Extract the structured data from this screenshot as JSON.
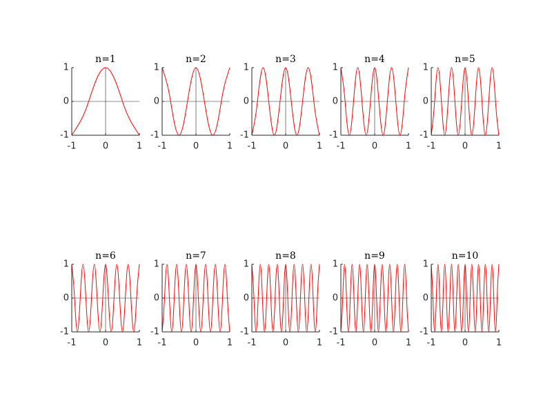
{
  "chart_data": [
    {
      "type": "line",
      "title": "n=1",
      "color": "#ff0000",
      "xlim": [
        -1,
        1
      ],
      "ylim": [
        -1,
        1
      ],
      "xticks": [
        -1,
        0,
        1
      ],
      "yticks": [
        -1,
        0,
        1
      ],
      "x": [
        -1,
        -0.5,
        0,
        0.5,
        1
      ],
      "values": [
        -1,
        0,
        1,
        0,
        -1
      ]
    },
    {
      "type": "line",
      "title": "n=2",
      "color": "#ff0000",
      "xlim": [
        -1,
        1
      ],
      "ylim": [
        -1,
        1
      ],
      "xticks": [
        -1,
        0,
        1
      ],
      "yticks": [
        -1,
        0,
        1
      ],
      "x": [
        -1,
        -0.75,
        -0.5,
        -0.25,
        0,
        0.25,
        0.5,
        0.75,
        1
      ],
      "values": [
        1,
        0,
        -1,
        0,
        1,
        0,
        -1,
        0,
        1
      ]
    },
    {
      "type": "line",
      "title": "n=3",
      "color": "#ff0000",
      "xlim": [
        -1,
        1
      ],
      "ylim": [
        -1,
        1
      ],
      "xticks": [
        -1,
        0,
        1
      ],
      "yticks": [
        -1,
        0,
        1
      ],
      "x": [
        -1,
        -0.8333,
        -0.6667,
        -0.5,
        -0.3333,
        -0.1667,
        0,
        0.1667,
        0.3333,
        0.5,
        0.6667,
        0.8333,
        1
      ],
      "values": [
        -1,
        0,
        1,
        0,
        -1,
        0,
        1,
        0,
        -1,
        0,
        1,
        0,
        -1
      ]
    },
    {
      "type": "line",
      "title": "n=4",
      "color": "#ff0000",
      "xlim": [
        -1,
        1
      ],
      "ylim": [
        -1,
        1
      ],
      "xticks": [
        -1,
        0,
        1
      ],
      "yticks": [
        -1,
        0,
        1
      ],
      "x": [
        -1,
        -0.875,
        -0.75,
        -0.625,
        -0.5,
        -0.375,
        -0.25,
        -0.125,
        0,
        0.125,
        0.25,
        0.375,
        0.5,
        0.625,
        0.75,
        0.875,
        1
      ],
      "values": [
        1,
        0,
        -1,
        0,
        1,
        0,
        -1,
        0,
        1,
        0,
        -1,
        0,
        1,
        0,
        -1,
        0,
        1
      ]
    },
    {
      "type": "line",
      "title": "n=5",
      "color": "#ff0000",
      "xlim": [
        -1,
        1
      ],
      "ylim": [
        -1,
        1
      ],
      "xticks": [
        -1,
        0,
        1
      ],
      "yticks": [
        -1,
        0,
        1
      ],
      "x": [
        -1,
        -0.9,
        -0.8,
        -0.7,
        -0.6,
        -0.5,
        -0.4,
        -0.3,
        -0.2,
        -0.1,
        0,
        0.1,
        0.2,
        0.3,
        0.4,
        0.5,
        0.6,
        0.7,
        0.8,
        0.9,
        1
      ],
      "values": [
        -1,
        0,
        1,
        0,
        -1,
        0,
        1,
        0,
        -1,
        0,
        1,
        0,
        -1,
        0,
        1,
        0,
        -1,
        0,
        1,
        0,
        -1
      ]
    },
    {
      "type": "line",
      "title": "n=6",
      "color": "#ff0000",
      "xlim": [
        -1,
        1
      ],
      "ylim": [
        -1,
        1
      ],
      "xticks": [
        -1,
        0,
        1
      ],
      "yticks": [
        -1,
        0,
        1
      ],
      "x": [
        -1,
        -0.9167,
        -0.8333,
        -0.75,
        -0.6667,
        -0.5833,
        -0.5,
        -0.4167,
        -0.3333,
        -0.25,
        -0.1667,
        -0.0833,
        0,
        0.0833,
        0.1667,
        0.25,
        0.3333,
        0.4167,
        0.5,
        0.5833,
        0.6667,
        0.75,
        0.8333,
        0.9167,
        1
      ],
      "values": [
        1,
        0,
        -1,
        0,
        1,
        0,
        -1,
        0,
        1,
        0,
        -1,
        0,
        1,
        0,
        -1,
        0,
        1,
        0,
        -1,
        0,
        1,
        0,
        -1,
        0,
        1
      ]
    },
    {
      "type": "line",
      "title": "n=7",
      "color": "#ff0000",
      "xlim": [
        -1,
        1
      ],
      "ylim": [
        -1,
        1
      ],
      "xticks": [
        -1,
        0,
        1
      ],
      "yticks": [
        -1,
        0,
        1
      ],
      "x": [
        -1,
        -0.9286,
        -0.8571,
        -0.7857,
        -0.7143,
        -0.6429,
        -0.5714,
        -0.5,
        -0.4286,
        -0.3571,
        -0.2857,
        -0.2143,
        -0.1429,
        -0.0714,
        0,
        0.0714,
        0.1429,
        0.2143,
        0.2857,
        0.3571,
        0.4286,
        0.5,
        0.5714,
        0.6429,
        0.7143,
        0.7857,
        0.8571,
        0.9286,
        1
      ],
      "values": [
        -1,
        0,
        1,
        0,
        -1,
        0,
        1,
        0,
        -1,
        0,
        1,
        0,
        -1,
        0,
        1,
        0,
        -1,
        0,
        1,
        0,
        -1,
        0,
        1,
        0,
        -1,
        0,
        1,
        0,
        -1
      ]
    },
    {
      "type": "line",
      "title": "n=8",
      "color": "#ff0000",
      "xlim": [
        -1,
        1
      ],
      "ylim": [
        -1,
        1
      ],
      "xticks": [
        -1,
        0,
        1
      ],
      "yticks": [
        -1,
        0,
        1
      ],
      "x": [
        -1,
        -0.9375,
        -0.875,
        -0.8125,
        -0.75,
        -0.6875,
        -0.625,
        -0.5625,
        -0.5,
        -0.4375,
        -0.375,
        -0.3125,
        -0.25,
        -0.1875,
        -0.125,
        -0.0625,
        0,
        0.0625,
        0.125,
        0.1875,
        0.25,
        0.3125,
        0.375,
        0.4375,
        0.5,
        0.5625,
        0.625,
        0.6875,
        0.75,
        0.8125,
        0.875,
        0.9375,
        1
      ],
      "values": [
        1,
        0,
        -1,
        0,
        1,
        0,
        -1,
        0,
        1,
        0,
        -1,
        0,
        1,
        0,
        -1,
        0,
        1,
        0,
        -1,
        0,
        1,
        0,
        -1,
        0,
        1,
        0,
        -1,
        0,
        1,
        0,
        -1,
        0,
        1
      ]
    },
    {
      "type": "line",
      "title": "n=9",
      "color": "#ff0000",
      "xlim": [
        -1,
        1
      ],
      "ylim": [
        -1,
        1
      ],
      "xticks": [
        -1,
        0,
        1
      ],
      "yticks": [
        -1,
        0,
        1
      ],
      "x": [
        -1,
        -0.9444,
        -0.8889,
        -0.8333,
        -0.7778,
        -0.7222,
        -0.6667,
        -0.6111,
        -0.5556,
        -0.5,
        -0.4444,
        -0.3889,
        -0.3333,
        -0.2778,
        -0.2222,
        -0.1667,
        -0.1111,
        -0.0556,
        0,
        0.0556,
        0.1111,
        0.1667,
        0.2222,
        0.2778,
        0.3333,
        0.3889,
        0.4444,
        0.5,
        0.5556,
        0.6111,
        0.6667,
        0.7222,
        0.7778,
        0.8333,
        0.8889,
        0.9444,
        1
      ],
      "values": [
        -1,
        0,
        1,
        0,
        -1,
        0,
        1,
        0,
        -1,
        0,
        1,
        0,
        -1,
        0,
        1,
        0,
        -1,
        0,
        1,
        0,
        -1,
        0,
        1,
        0,
        -1,
        0,
        1,
        0,
        -1,
        0,
        1,
        0,
        -1,
        0,
        1,
        0,
        -1
      ]
    },
    {
      "type": "line",
      "title": "n=10",
      "color": "#ff0000",
      "xlim": [
        -1,
        1
      ],
      "ylim": [
        -1,
        1
      ],
      "xticks": [
        -1,
        0,
        1
      ],
      "yticks": [
        -1,
        0,
        1
      ],
      "x": [
        -1,
        -0.95,
        -0.9,
        -0.85,
        -0.8,
        -0.75,
        -0.7,
        -0.65,
        -0.6,
        -0.55,
        -0.5,
        -0.45,
        -0.4,
        -0.35,
        -0.3,
        -0.25,
        -0.2,
        -0.15,
        -0.1,
        -0.05,
        0,
        0.05,
        0.1,
        0.15,
        0.2,
        0.25,
        0.3,
        0.35,
        0.4,
        0.45,
        0.5,
        0.55,
        0.6,
        0.65,
        0.7,
        0.75,
        0.8,
        0.85,
        0.9,
        0.95,
        1
      ],
      "values": [
        1,
        0,
        -1,
        0,
        1,
        0,
        -1,
        0,
        1,
        0,
        -1,
        0,
        1,
        0,
        -1,
        0,
        1,
        0,
        -1,
        0,
        1,
        0,
        -1,
        0,
        1,
        0,
        -1,
        0,
        1,
        0,
        -1,
        0,
        1,
        0,
        -1,
        0,
        1,
        0,
        -1,
        0,
        1
      ]
    }
  ]
}
